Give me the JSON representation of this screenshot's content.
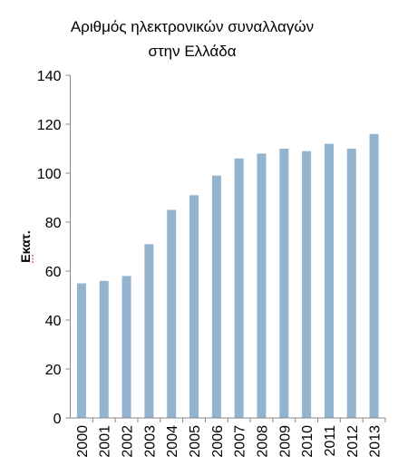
{
  "chart_data": {
    "type": "bar",
    "title_lines": [
      "Αριθμός ηλεκτρονικών συναλλαγών",
      "στην Ελλάδα"
    ],
    "ylabel": "Εκατ.",
    "xlabel": "",
    "ylim": [
      0,
      140
    ],
    "yticks": [
      0,
      20,
      40,
      60,
      80,
      100,
      120,
      140
    ],
    "grid": false,
    "legend": "none",
    "categories": [
      "2000",
      "2001",
      "2002",
      "2003",
      "2004",
      "2005",
      "2006",
      "2007",
      "2008",
      "2009",
      "2010",
      "2011",
      "2012",
      "2013"
    ],
    "values": [
      55,
      56,
      58,
      71,
      85,
      91,
      99,
      106,
      108,
      110,
      109,
      112,
      110,
      116
    ],
    "bar_color": "#93b4cf"
  }
}
